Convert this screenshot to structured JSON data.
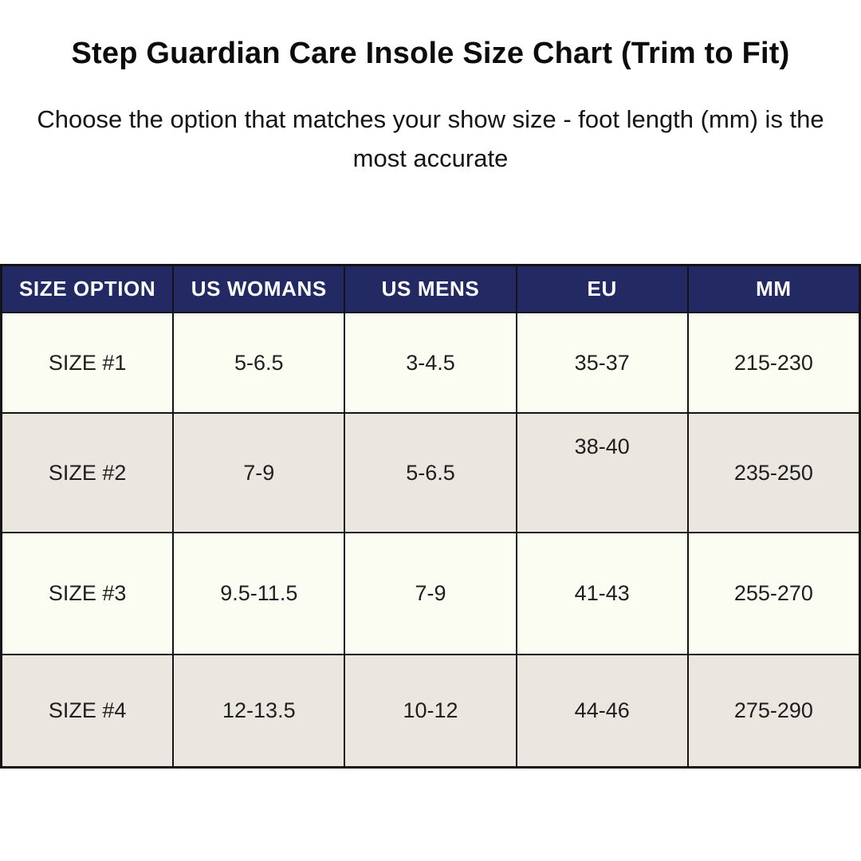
{
  "page": {
    "title": "Step Guardian Care Insole Size Chart (Trim to Fit)",
    "subtitle": "Choose the option that matches your show size - foot length (mm) is the most accurate"
  },
  "table": {
    "headers": [
      "SIZE OPTION",
      "US WOMANS",
      "US MENS",
      "EU",
      "MM"
    ],
    "rows": [
      {
        "cells": [
          "SIZE #1",
          "5-6.5",
          "3-4.5",
          "35-37",
          "215-230"
        ]
      },
      {
        "cells": [
          "SIZE #2",
          "7-9",
          "5-6.5",
          "38-40",
          "235-250"
        ]
      },
      {
        "cells": [
          "SIZE #3",
          "9.5-11.5",
          "7-9",
          "41-43",
          "255-270"
        ]
      },
      {
        "cells": [
          "SIZE #4",
          "12-13.5",
          "10-12",
          "44-46",
          "275-290"
        ]
      }
    ]
  },
  "colors": {
    "header_bg": "#232a63",
    "header_text": "#ffffff",
    "row_odd_bg": "#fcfdf2",
    "row_even_bg": "#ebe6e0",
    "border": "#141414",
    "body_text": "#1e1e1e",
    "page_bg": "#ffffff"
  },
  "chart_data": {
    "type": "table",
    "title": "Step Guardian Care Insole Size Chart (Trim to Fit)",
    "subtitle": "Choose the option that matches your show size - foot length (mm) is the most accurate",
    "columns": [
      "SIZE OPTION",
      "US WOMANS",
      "US MENS",
      "EU",
      "MM"
    ],
    "rows": [
      [
        "SIZE #1",
        "5-6.5",
        "3-4.5",
        "35-37",
        "215-230"
      ],
      [
        "SIZE #2",
        "7-9",
        "5-6.5",
        "38-40",
        "235-250"
      ],
      [
        "SIZE #3",
        "9.5-11.5",
        "7-9",
        "41-43",
        "255-270"
      ],
      [
        "SIZE #4",
        "12-13.5",
        "10-12",
        "44-46",
        "275-290"
      ]
    ],
    "layout_hints": {
      "header_style": "navy background, white bold uppercase text",
      "row_striping": [
        "cream",
        "light-beige",
        "cream",
        "light-beige"
      ],
      "grid": "black borders on all cells"
    }
  }
}
